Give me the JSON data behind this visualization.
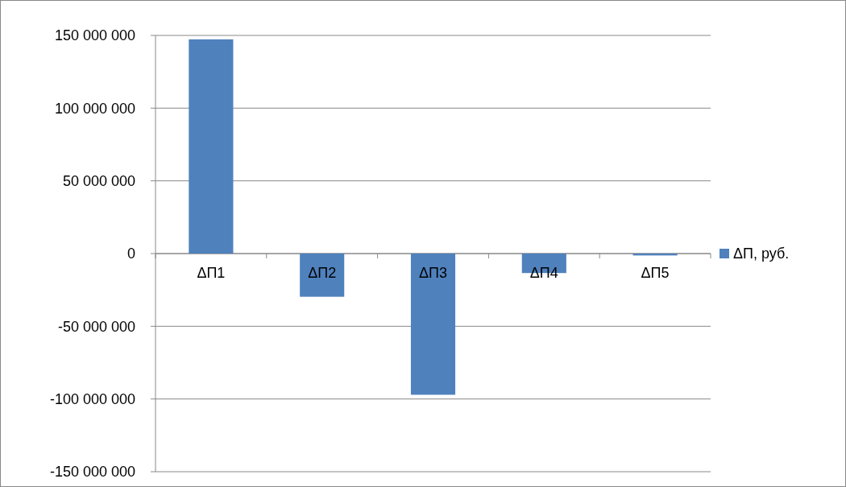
{
  "chart_data": {
    "type": "bar",
    "categories": [
      "ΔП1",
      "ΔП2",
      "ΔП3",
      "ΔП4",
      "ΔП5"
    ],
    "series": [
      {
        "name": "ΔП, руб.",
        "color": "#4f81bd",
        "values": [
          147300000,
          -29700000,
          -97100000,
          -13400000,
          -1300000
        ]
      }
    ],
    "ylim": [
      -150000000,
      150000000
    ],
    "yticks": [
      {
        "value": -150000000,
        "label": "-150 000 000"
      },
      {
        "value": -100000000,
        "label": "-100 000 000"
      },
      {
        "value": -50000000,
        "label": "-50 000 000"
      },
      0,
      {
        "value": 50000000,
        "label": "50 000 000"
      },
      {
        "value": 100000000,
        "label": "100 000 000"
      },
      {
        "value": 150000000,
        "label": "150 000 000"
      }
    ],
    "grid": "y",
    "legend": "right"
  }
}
